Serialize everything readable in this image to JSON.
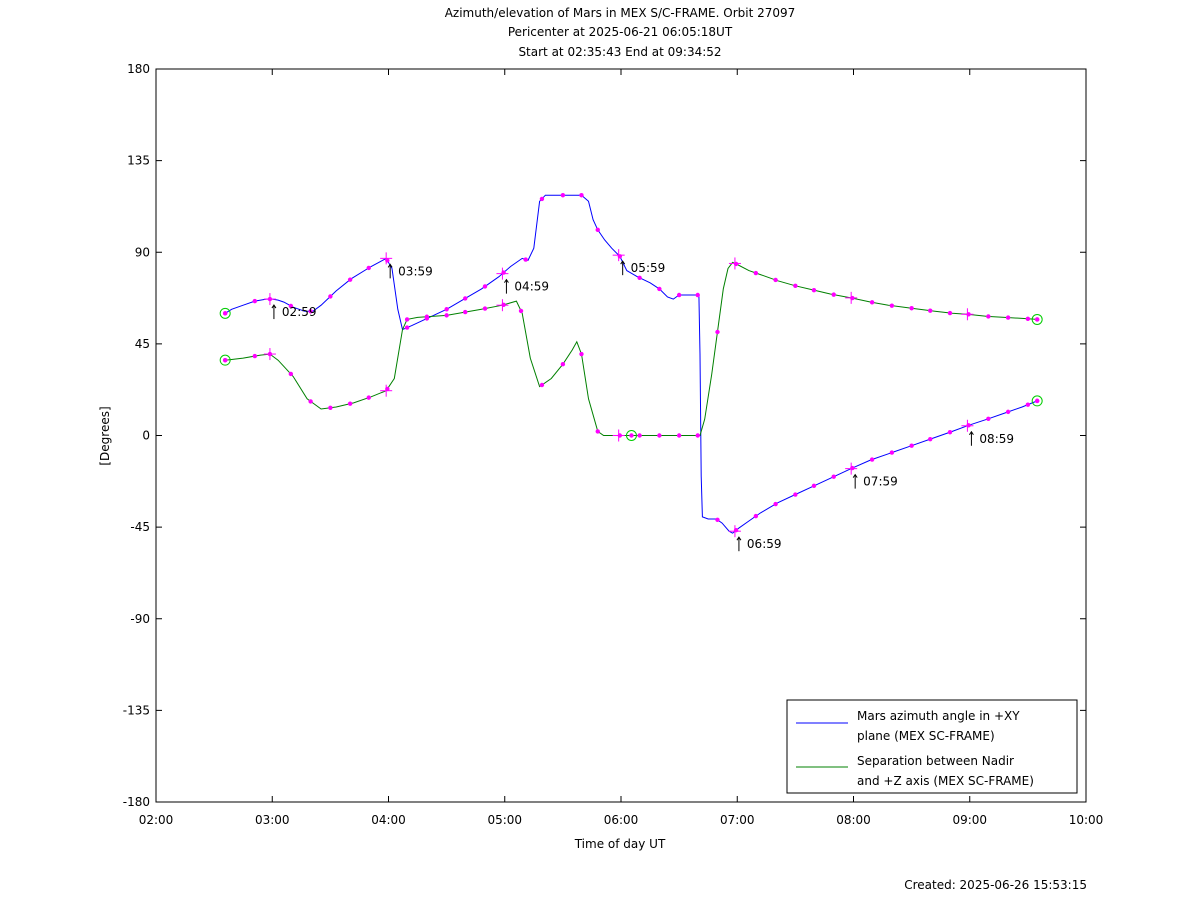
{
  "chart_data": {
    "type": "line",
    "title": [
      "Azimuth/elevation of Mars in MEX S/C-FRAME.  Orbit 27097",
      "Pericenter at 2025-06-21 06:05:18UT",
      "Start at 02:35:43 End at 09:34:52"
    ],
    "xlabel": "Time of day UT",
    "ylabel": "[Degrees]",
    "xlim_hours": [
      2,
      10
    ],
    "ylim": [
      -180,
      180
    ],
    "xticks": [
      {
        "value": 2,
        "label": "02:00"
      },
      {
        "value": 3,
        "label": "03:00"
      },
      {
        "value": 4,
        "label": "04:00"
      },
      {
        "value": 5,
        "label": "05:00"
      },
      {
        "value": 6,
        "label": "06:00"
      },
      {
        "value": 7,
        "label": "07:00"
      },
      {
        "value": 8,
        "label": "08:00"
      },
      {
        "value": 9,
        "label": "09:00"
      },
      {
        "value": 10,
        "label": "10:00"
      }
    ],
    "yticks": [
      180,
      135,
      90,
      45,
      0,
      -45,
      -90,
      -135,
      -180
    ],
    "grid": false,
    "legend_position": "bottom-right",
    "series": [
      {
        "name": "Mars azimuth angle in +XY plane (MEX SC-FRAME)",
        "legend_lines": [
          "Mars azimuth angle in +XY",
          "plane (MEX SC-FRAME)"
        ],
        "color": "#0000ff",
        "points": [
          [
            2.595,
            60
          ],
          [
            2.65,
            62
          ],
          [
            2.75,
            64
          ],
          [
            2.85,
            66
          ],
          [
            2.95,
            67
          ],
          [
            3.0,
            67
          ],
          [
            3.05,
            66.5
          ],
          [
            3.1,
            65.5
          ],
          [
            3.18,
            63
          ],
          [
            3.28,
            61
          ],
          [
            3.35,
            61
          ],
          [
            3.42,
            64
          ],
          [
            3.55,
            71
          ],
          [
            3.68,
            77
          ],
          [
            3.85,
            83
          ],
          [
            3.98,
            87
          ],
          [
            4.03,
            82
          ],
          [
            4.08,
            62
          ],
          [
            4.12,
            52
          ],
          [
            4.2,
            54
          ],
          [
            4.35,
            58
          ],
          [
            4.5,
            62
          ],
          [
            4.65,
            67
          ],
          [
            4.8,
            72
          ],
          [
            4.95,
            78
          ],
          [
            5.05,
            83
          ],
          [
            5.15,
            87
          ],
          [
            5.2,
            86
          ],
          [
            5.25,
            92
          ],
          [
            5.3,
            115
          ],
          [
            5.35,
            118
          ],
          [
            5.5,
            118
          ],
          [
            5.66,
            118
          ],
          [
            5.72,
            115
          ],
          [
            5.76,
            106
          ],
          [
            5.8,
            101
          ],
          [
            5.86,
            96
          ],
          [
            5.92,
            92
          ],
          [
            5.99,
            88
          ],
          [
            6.05,
            81
          ],
          [
            6.14,
            78
          ],
          [
            6.25,
            75
          ],
          [
            6.33,
            72
          ],
          [
            6.4,
            68
          ],
          [
            6.45,
            67
          ],
          [
            6.5,
            69
          ],
          [
            6.58,
            69
          ],
          [
            6.67,
            69
          ],
          [
            6.68,
            40
          ],
          [
            6.69,
            -20
          ],
          [
            6.7,
            -40
          ],
          [
            6.75,
            -41
          ],
          [
            6.82,
            -41
          ],
          [
            6.87,
            -43
          ],
          [
            6.93,
            -47
          ],
          [
            6.96,
            -48
          ],
          [
            7.0,
            -46
          ],
          [
            7.1,
            -42
          ],
          [
            7.2,
            -38
          ],
          [
            7.35,
            -33
          ],
          [
            7.5,
            -29
          ],
          [
            7.65,
            -25
          ],
          [
            7.8,
            -21
          ],
          [
            7.99,
            -16
          ],
          [
            8.15,
            -12
          ],
          [
            8.3,
            -9
          ],
          [
            8.5,
            -5
          ],
          [
            8.7,
            -1
          ],
          [
            8.85,
            2
          ],
          [
            8.99,
            5
          ],
          [
            9.15,
            8
          ],
          [
            9.3,
            11
          ],
          [
            9.45,
            14
          ],
          [
            9.58,
            17
          ]
        ],
        "dot_x": [
          2.595,
          2.85,
          2.98,
          3.16,
          3.33,
          3.5,
          3.67,
          3.83,
          3.99,
          4.16,
          4.33,
          4.5,
          4.66,
          4.83,
          4.99,
          5.18,
          5.32,
          5.5,
          5.66,
          5.8,
          5.99,
          6.16,
          6.33,
          6.5,
          6.66,
          6.83,
          6.99,
          7.16,
          7.33,
          7.5,
          7.66,
          7.83,
          7.99,
          8.16,
          8.33,
          8.5,
          8.66,
          8.83,
          8.99,
          9.16,
          9.33,
          9.5,
          9.58
        ],
        "plus_markers": [
          {
            "x": 2.98,
            "label": "02:59"
          },
          {
            "x": 3.98,
            "label": "03:59"
          },
          {
            "x": 4.98,
            "label": "04:59"
          },
          {
            "x": 5.98,
            "label": "05:59"
          },
          {
            "x": 6.98,
            "label": "06:59"
          },
          {
            "x": 7.98,
            "label": "07:59"
          },
          {
            "x": 8.98,
            "label": "08:59"
          }
        ],
        "end_circles_x": [
          2.595,
          9.58
        ]
      },
      {
        "name": "Separation between Nadir and +Z axis (MEX SC-FRAME)",
        "legend_lines": [
          "Separation between Nadir",
          "and +Z axis (MEX SC-FRAME)"
        ],
        "color": "#008000",
        "points": [
          [
            2.595,
            37
          ],
          [
            2.75,
            38
          ],
          [
            2.9,
            39.5
          ],
          [
            2.98,
            40
          ],
          [
            3.05,
            37
          ],
          [
            3.18,
            29
          ],
          [
            3.3,
            18
          ],
          [
            3.42,
            13
          ],
          [
            3.55,
            14
          ],
          [
            3.7,
            16
          ],
          [
            3.85,
            19
          ],
          [
            3.98,
            22
          ],
          [
            4.05,
            28
          ],
          [
            4.12,
            52
          ],
          [
            4.16,
            57
          ],
          [
            4.25,
            58
          ],
          [
            4.5,
            59
          ],
          [
            4.8,
            62
          ],
          [
            4.98,
            64
          ],
          [
            5.1,
            66
          ],
          [
            5.15,
            60
          ],
          [
            5.22,
            38
          ],
          [
            5.3,
            24
          ],
          [
            5.4,
            28
          ],
          [
            5.5,
            35
          ],
          [
            5.58,
            42
          ],
          [
            5.62,
            46
          ],
          [
            5.66,
            40
          ],
          [
            5.72,
            18
          ],
          [
            5.8,
            2
          ],
          [
            5.85,
            0
          ],
          [
            6.0,
            0
          ],
          [
            6.1,
            0
          ],
          [
            6.3,
            0
          ],
          [
            6.5,
            0
          ],
          [
            6.68,
            0
          ],
          [
            6.72,
            8
          ],
          [
            6.78,
            30
          ],
          [
            6.84,
            55
          ],
          [
            6.88,
            72
          ],
          [
            6.92,
            82
          ],
          [
            6.96,
            85
          ],
          [
            7.0,
            84
          ],
          [
            7.1,
            81
          ],
          [
            7.2,
            79
          ],
          [
            7.35,
            76
          ],
          [
            7.5,
            73.5
          ],
          [
            7.65,
            71.5
          ],
          [
            7.8,
            69.5
          ],
          [
            7.99,
            67.5
          ],
          [
            8.15,
            65.5
          ],
          [
            8.3,
            64
          ],
          [
            8.5,
            62.5
          ],
          [
            8.7,
            61
          ],
          [
            8.85,
            60
          ],
          [
            8.99,
            59.5
          ],
          [
            9.15,
            58.5
          ],
          [
            9.3,
            58
          ],
          [
            9.45,
            57.5
          ],
          [
            9.58,
            57
          ]
        ],
        "dot_x": [
          2.595,
          2.85,
          2.98,
          3.16,
          3.33,
          3.5,
          3.67,
          3.83,
          3.99,
          4.16,
          4.33,
          4.5,
          4.66,
          4.83,
          4.99,
          5.14,
          5.32,
          5.5,
          5.66,
          5.8,
          5.99,
          6.16,
          6.33,
          6.5,
          6.66,
          6.83,
          6.99,
          7.16,
          7.33,
          7.5,
          7.66,
          7.83,
          7.99,
          8.16,
          8.33,
          8.5,
          8.66,
          8.83,
          8.99,
          9.16,
          9.33,
          9.5,
          9.58
        ],
        "plus_markers": [
          {
            "x": 2.98
          },
          {
            "x": 3.98
          },
          {
            "x": 4.98
          },
          {
            "x": 5.98
          },
          {
            "x": 6.98
          },
          {
            "x": 7.98
          },
          {
            "x": 8.98
          }
        ],
        "end_circles_x": [
          2.595,
          6.09,
          9.58
        ]
      }
    ],
    "marker_dot_color": "#ff00ff",
    "end_circle_color": "#00cc00"
  },
  "footer": {
    "created": "Created: 2025-06-26 15:53:15"
  }
}
